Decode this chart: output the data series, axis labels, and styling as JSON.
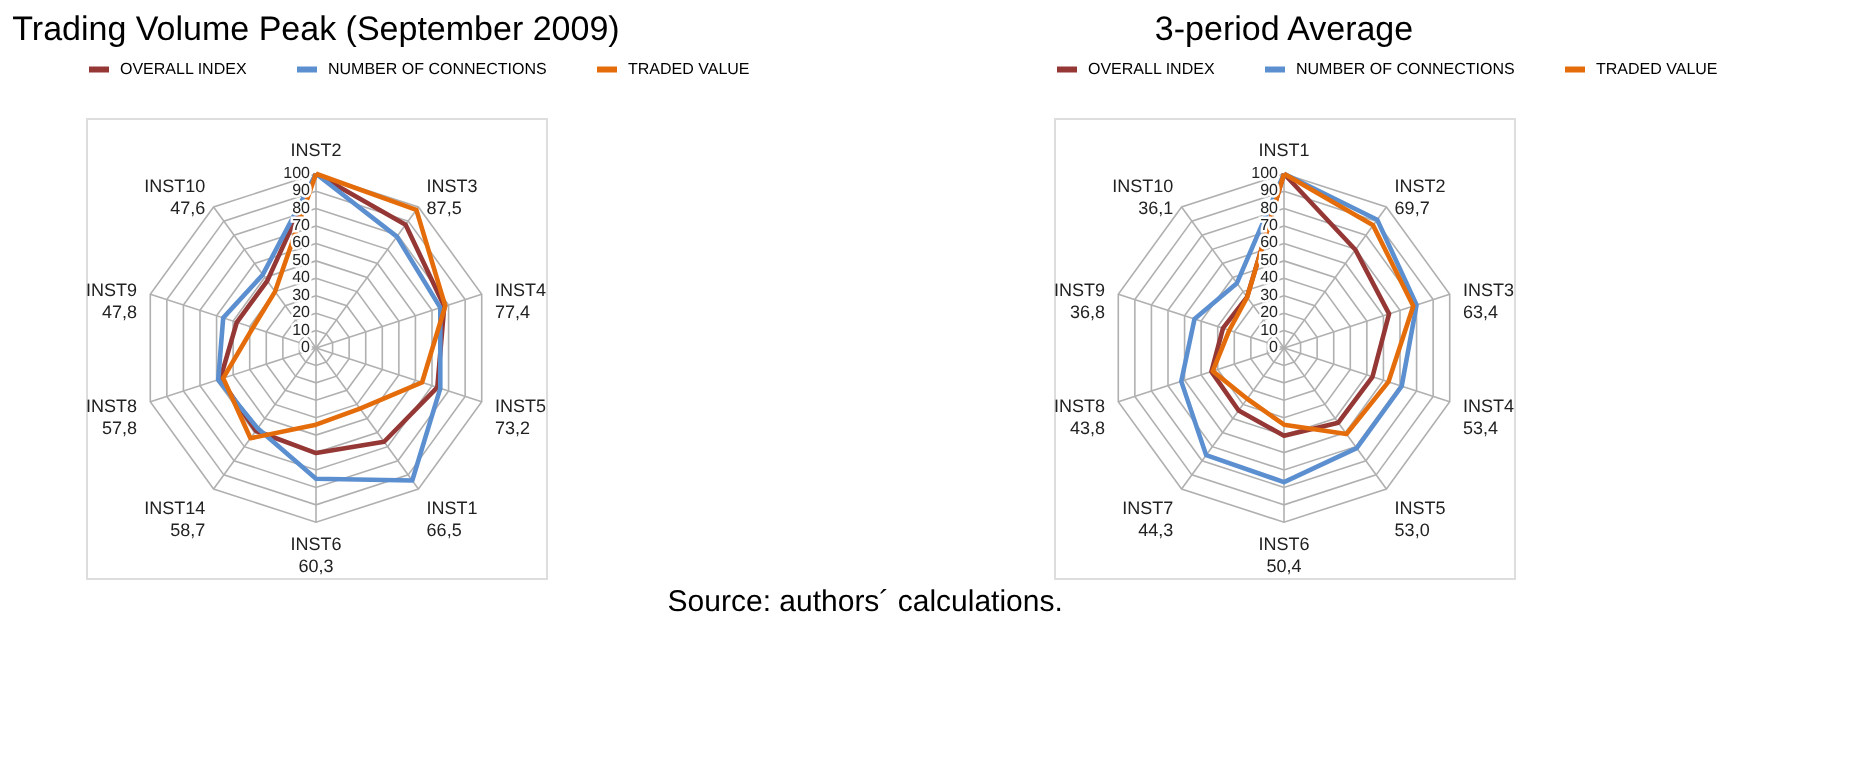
{
  "chart_data": [
    {
      "type": "radar",
      "title": "Trading Volume Peak (September 2009)",
      "categories": [
        "INST2",
        "INST3\n87,5",
        "INST4\n77,4",
        "INST5\n73,2",
        "INST1\n66,5",
        "INST6\n60,3",
        "INST14\n58,7",
        "INST8\n57,8",
        "INST9\n47,8",
        "INST10\n47,6"
      ],
      "ylim": [
        0,
        100
      ],
      "yticks": [
        0,
        10,
        20,
        30,
        40,
        50,
        60,
        70,
        80,
        90,
        100
      ],
      "grid": true,
      "legend": "top",
      "series": [
        {
          "name": "OVERALL INDEX",
          "color": "#953735",
          "values": [
            100,
            87.5,
            77.4,
            73.2,
            66.5,
            60.3,
            58.7,
            57.8,
            47.8,
            47.6
          ]
        },
        {
          "name": "NUMBER OF CONNECTIONS",
          "color": "#5b8fd0",
          "values": [
            100,
            79,
            75,
            75,
            94,
            75,
            57,
            59,
            56,
            52
          ]
        },
        {
          "name": "TRADED VALUE",
          "color": "#e46c0a",
          "values": [
            100,
            98,
            78,
            64,
            43,
            44,
            64,
            56,
            38,
            40
          ]
        }
      ]
    },
    {
      "type": "radar",
      "title": "3-period Average",
      "categories": [
        "INST1",
        "INST2\n69,7",
        "INST3\n63,4",
        "INST4\n53,4",
        "INST5\n53,0",
        "INST6\n50,4",
        "INST7\n44,3",
        "INST8\n43,8",
        "INST9\n36,8",
        "INST10\n36,1"
      ],
      "ylim": [
        0,
        100
      ],
      "yticks": [
        0,
        10,
        20,
        30,
        40,
        50,
        60,
        70,
        80,
        90,
        100
      ],
      "grid": true,
      "legend": "top",
      "annotations": [
        "Source: authors´ calculations."
      ],
      "series": [
        {
          "name": "OVERALL INDEX",
          "color": "#953735",
          "values": [
            100,
            69.7,
            63.4,
            53.4,
            53.0,
            50.4,
            44.3,
            43.8,
            36.8,
            36.1
          ]
        },
        {
          "name": "NUMBER OF CONNECTIONS",
          "color": "#5b8fd0",
          "values": [
            100,
            91,
            80,
            71,
            71,
            77,
            76,
            62,
            54,
            46
          ]
        },
        {
          "name": "TRADED VALUE",
          "color": "#e46c0a",
          "values": [
            100,
            87,
            78,
            63,
            61,
            44,
            36,
            43,
            33,
            36
          ]
        }
      ]
    }
  ]
}
